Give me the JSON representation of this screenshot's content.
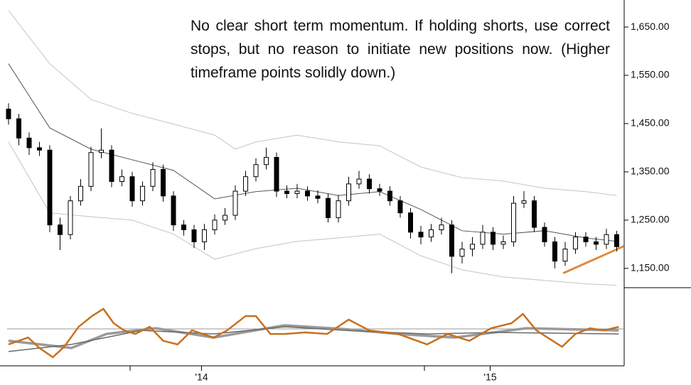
{
  "chart_data": [
    {
      "type": "candlestick",
      "annotation": "No clear short term momentum. If holding shorts, use correct stops, but no reason to initiate new positions now. (Higher timeframe points solidly down.)",
      "categories": [
        null,
        null,
        null,
        null,
        null,
        null,
        null,
        null,
        null,
        null,
        null,
        null,
        null,
        null,
        null,
        null,
        null,
        null,
        null,
        "'14",
        null,
        null,
        null,
        null,
        null,
        null,
        null,
        null,
        null,
        null,
        null,
        null,
        null,
        null,
        null,
        null,
        null,
        null,
        null,
        null,
        null,
        null,
        null,
        null,
        null,
        null,
        null,
        "'15",
        null,
        null,
        null,
        null,
        null,
        null,
        null,
        null,
        null,
        null,
        null,
        null
      ],
      "open": [
        1480,
        1460,
        1420,
        1400,
        1395,
        1240,
        1220,
        1290,
        1320,
        1390,
        1395,
        1330,
        1340,
        1290,
        1320,
        1355,
        1300,
        1240,
        1230,
        1205,
        1230,
        1250,
        1260,
        1310,
        1340,
        1365,
        1380,
        1310,
        1305,
        1310,
        1300,
        1295,
        1255,
        1290,
        1325,
        1335,
        1315,
        1310,
        1290,
        1265,
        1225,
        1215,
        1230,
        1240,
        1175,
        1190,
        1200,
        1225,
        1200,
        1205,
        1285,
        1290,
        1235,
        1205,
        1165,
        1190,
        1215,
        1205,
        1200,
        1220
      ],
      "high": [
        1492,
        1470,
        1432,
        1412,
        1405,
        1255,
        1300,
        1335,
        1402,
        1440,
        1405,
        1355,
        1350,
        1330,
        1370,
        1365,
        1310,
        1250,
        1240,
        1242,
        1262,
        1275,
        1322,
        1352,
        1378,
        1400,
        1390,
        1322,
        1325,
        1320,
        1312,
        1305,
        1302,
        1340,
        1352,
        1345,
        1325,
        1320,
        1300,
        1275,
        1238,
        1242,
        1255,
        1250,
        1205,
        1215,
        1240,
        1235,
        1218,
        1300,
        1310,
        1300,
        1245,
        1215,
        1205,
        1225,
        1225,
        1215,
        1232,
        1228
      ],
      "low": [
        1448,
        1405,
        1385,
        1383,
        1225,
        1188,
        1210,
        1280,
        1310,
        1378,
        1318,
        1320,
        1278,
        1280,
        1310,
        1288,
        1228,
        1218,
        1192,
        1188,
        1220,
        1240,
        1250,
        1300,
        1330,
        1355,
        1298,
        1295,
        1295,
        1290,
        1285,
        1245,
        1245,
        1280,
        1315,
        1305,
        1300,
        1280,
        1255,
        1212,
        1200,
        1205,
        1220,
        1140,
        1160,
        1175,
        1190,
        1188,
        1190,
        1195,
        1275,
        1225,
        1195,
        1150,
        1155,
        1180,
        1195,
        1188,
        1190,
        1185
      ],
      "close": [
        1460,
        1420,
        1400,
        1395,
        1240,
        1220,
        1290,
        1320,
        1390,
        1395,
        1330,
        1340,
        1290,
        1320,
        1355,
        1300,
        1240,
        1230,
        1205,
        1230,
        1250,
        1260,
        1310,
        1340,
        1365,
        1380,
        1310,
        1305,
        1310,
        1300,
        1295,
        1255,
        1290,
        1325,
        1335,
        1315,
        1310,
        1290,
        1265,
        1225,
        1215,
        1230,
        1240,
        1175,
        1190,
        1200,
        1225,
        1200,
        1205,
        1285,
        1290,
        1235,
        1205,
        1165,
        1190,
        1215,
        1205,
        1200,
        1220,
        1195
      ],
      "lines": [
        {
          "color": "#c4c4c4",
          "width": 1,
          "x": [
            0,
            4,
            8,
            12,
            16,
            20,
            22,
            24,
            28,
            32,
            36,
            40,
            44,
            48,
            52,
            56,
            59
          ],
          "values": [
            1684,
            1574,
            1500,
            1471,
            1449,
            1426,
            1397,
            1412,
            1426,
            1412,
            1404,
            1360,
            1338,
            1331,
            1316,
            1309,
            1301
          ]
        },
        {
          "color": "#555555",
          "width": 1,
          "x": [
            0,
            4,
            8,
            12,
            16,
            20,
            24,
            28,
            32,
            36,
            40,
            44,
            48,
            52,
            56,
            59
          ],
          "values": [
            1574,
            1441,
            1397,
            1375,
            1353,
            1294,
            1309,
            1316,
            1301,
            1309,
            1272,
            1228,
            1221,
            1228,
            1213,
            1206
          ]
        },
        {
          "color": "#c4c4c4",
          "width": 1,
          "x": [
            0,
            4,
            8,
            12,
            16,
            20,
            24,
            28,
            32,
            36,
            40,
            44,
            48,
            52,
            56,
            59
          ],
          "values": [
            1412,
            1265,
            1257,
            1250,
            1221,
            1169,
            1191,
            1206,
            1213,
            1221,
            1176,
            1147,
            1132,
            1125,
            1118,
            1115
          ]
        },
        {
          "color": "#e08a3c",
          "width": 3,
          "x": [
            53.8,
            59.7
          ],
          "values": [
            1140,
            1196
          ]
        }
      ],
      "ylim": [
        1110,
        1706
      ],
      "yticks": [
        {
          "value": 1650,
          "label": "1,650.00"
        },
        {
          "value": 1550,
          "label": "1,550.00"
        },
        {
          "value": 1450,
          "label": "1,450.00"
        },
        {
          "value": 1350,
          "label": "1,350.00"
        },
        {
          "value": 1250,
          "label": "1,250.00"
        },
        {
          "value": 1150,
          "label": "1,150.00"
        }
      ]
    },
    {
      "type": "line",
      "reference_line": 0,
      "ylim": [
        -100,
        100
      ],
      "series": [
        {
          "color": "#9a9a9a",
          "width": 3.5,
          "x": [
            0,
            6.1,
            9.5,
            14.3,
            19.9,
            26.8,
            32.3,
            37.8,
            43.3,
            50.2,
            59.2
          ],
          "values": [
            -40,
            -64,
            -17,
            2,
            -29,
            12,
            0,
            -17,
            -29,
            2,
            -5
          ]
        },
        {
          "color": "#6a6a6a",
          "width": 1.5,
          "x": [
            0,
            6.1,
            12.9,
            19.9,
            26.8,
            33.7,
            40.6,
            47.4,
            59.2
          ],
          "values": [
            -76,
            -52,
            -5,
            -17,
            7,
            -7,
            -17,
            -12,
            -17
          ]
        },
        {
          "color": "#c8701e",
          "width": 2.5,
          "x": [
            0,
            1.9,
            3,
            4.3,
            5.4,
            6.8,
            8.1,
            9.2,
            10.2,
            11.2,
            12.3,
            13.7,
            15,
            16.4,
            17.8,
            19.9,
            21.2,
            23,
            24,
            25.4,
            26.8,
            28.8,
            30.9,
            33,
            35,
            37.8,
            40.6,
            42.6,
            44.7,
            46.8,
            48.8,
            49.9,
            51.2,
            53.7,
            55,
            56.4,
            57.8,
            59.2
          ],
          "values": [
            -52,
            -29,
            -64,
            -95,
            -60,
            7,
            43,
            67,
            19,
            -5,
            -17,
            7,
            -40,
            -52,
            -5,
            -29,
            -5,
            43,
            43,
            -17,
            -17,
            -12,
            -17,
            31,
            -5,
            -17,
            -52,
            -17,
            -40,
            2,
            19,
            50,
            -5,
            -60,
            -17,
            2,
            -5,
            7
          ]
        }
      ]
    }
  ]
}
